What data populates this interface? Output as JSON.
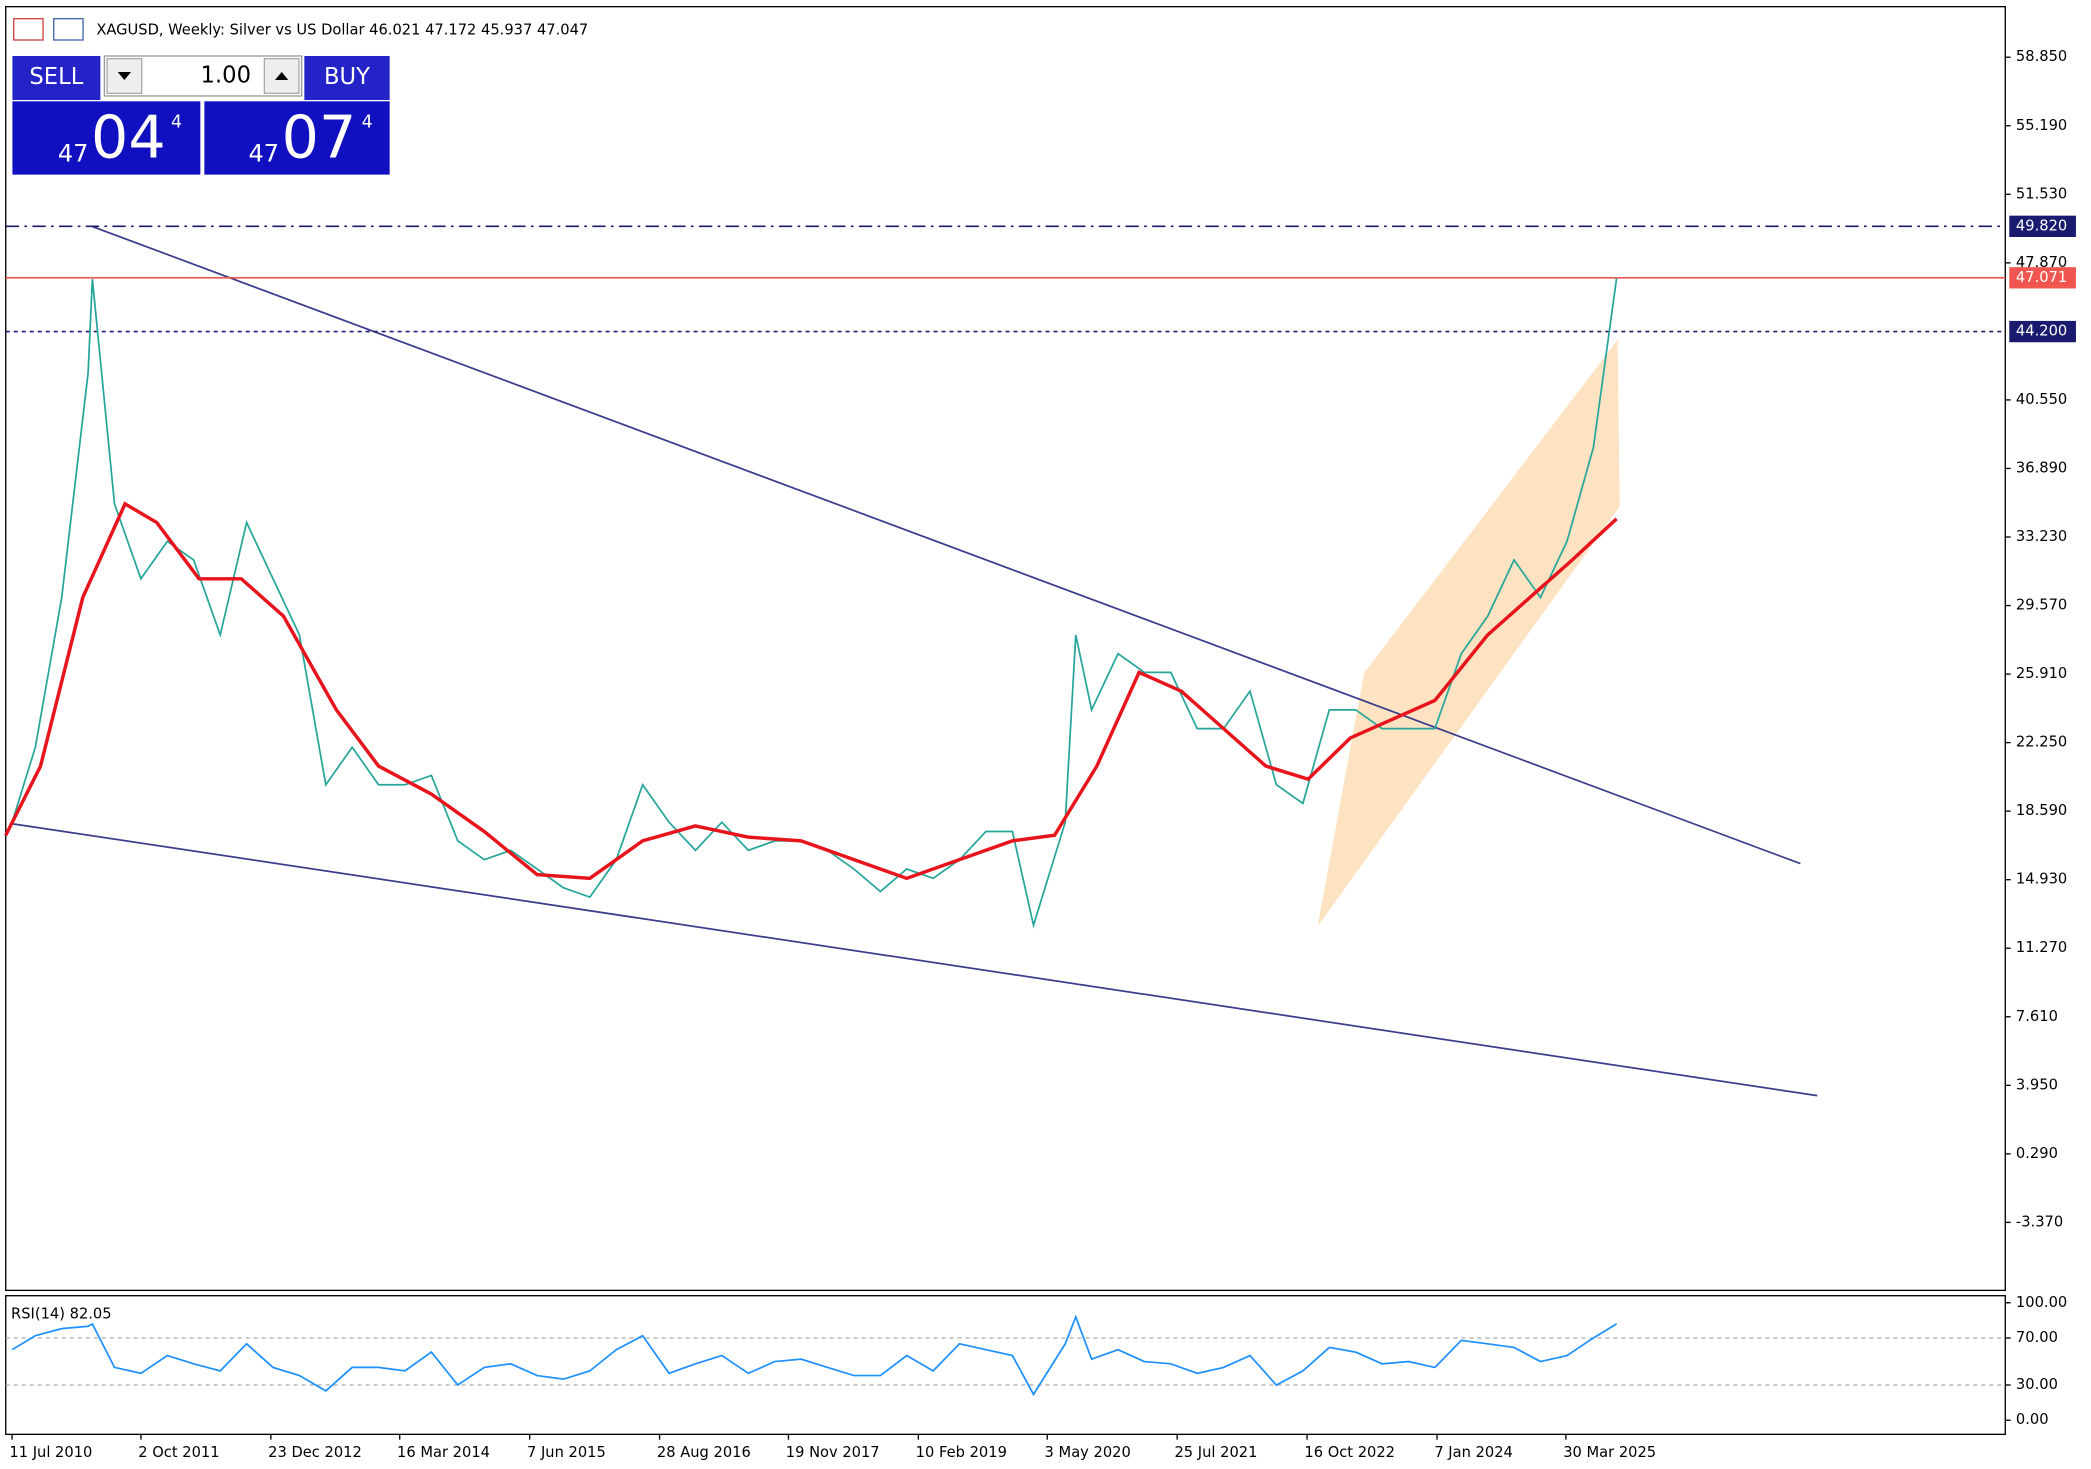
{
  "header": {
    "symbol_line": "XAGUSD, Weekly:  Silver vs US Dollar  46.021 47.172 45.937 47.047"
  },
  "trade_panel": {
    "sell": "SELL",
    "buy": "BUY",
    "volume": "1.00",
    "bid": {
      "big": "47",
      "main": "04",
      "small": "4"
    },
    "ask": {
      "big": "47",
      "main": "07",
      "small": "4"
    }
  },
  "chart_data": [
    {
      "type": "line",
      "xlim": [
        2010.47,
        2029.4
      ],
      "ylim": [
        -7.0,
        61.55
      ],
      "yticks": [
        {
          "value": 58.85,
          "label": "58.850"
        },
        {
          "value": 55.19,
          "label": "55.190"
        },
        {
          "value": 51.53,
          "label": "51.530"
        },
        {
          "value": 47.87,
          "label": "47.870"
        },
        {
          "value": 40.55,
          "label": "40.550"
        },
        {
          "value": 36.89,
          "label": "36.890"
        },
        {
          "value": 33.23,
          "label": "33.230"
        },
        {
          "value": 29.57,
          "label": "29.570"
        },
        {
          "value": 25.91,
          "label": "25.910"
        },
        {
          "value": 22.25,
          "label": "22.250"
        },
        {
          "value": 18.59,
          "label": "18.590"
        },
        {
          "value": 14.93,
          "label": "14.930"
        },
        {
          "value": 11.27,
          "label": "11.270"
        },
        {
          "value": 7.61,
          "label": "7.610"
        },
        {
          "value": 3.95,
          "label": "3.950"
        },
        {
          "value": 0.29,
          "label": "0.290"
        },
        {
          "value": -3.37,
          "label": "-3.370"
        }
      ],
      "x": [
        2010.53,
        2010.75,
        2011.0,
        2011.25,
        2011.29,
        2011.5,
        2011.75,
        2012.0,
        2012.25,
        2012.5,
        2012.75,
        2013.0,
        2013.25,
        2013.5,
        2013.75,
        2014.0,
        2014.25,
        2014.5,
        2014.75,
        2015.0,
        2015.25,
        2015.5,
        2015.75,
        2016.0,
        2016.25,
        2016.5,
        2016.75,
        2017.0,
        2017.25,
        2017.5,
        2017.75,
        2018.0,
        2018.25,
        2018.5,
        2018.75,
        2019.0,
        2019.25,
        2019.5,
        2019.75,
        2020.0,
        2020.2,
        2020.5,
        2020.6,
        2020.75,
        2021.0,
        2021.25,
        2021.5,
        2021.75,
        2022.0,
        2022.25,
        2022.5,
        2022.75,
        2023.0,
        2023.25,
        2023.5,
        2023.75,
        2024.0,
        2024.25,
        2024.5,
        2024.75,
        2025.0,
        2025.25,
        2025.5,
        2025.72
      ],
      "series": [
        {
          "color": "#26a69a",
          "values": [
            18,
            22,
            30,
            42,
            47,
            35,
            31,
            33,
            32,
            28,
            34,
            31,
            28,
            20,
            22,
            20,
            20,
            20.5,
            17,
            16,
            16.5,
            15.5,
            14.5,
            14,
            16,
            20,
            18,
            16.5,
            18,
            16.5,
            17,
            17,
            16.5,
            15.5,
            14.3,
            15.5,
            15,
            16,
            17.5,
            17.5,
            12.5,
            18,
            28,
            24,
            27,
            26,
            26,
            23,
            23,
            25,
            20,
            19,
            24,
            24,
            23,
            23,
            23,
            27,
            29,
            32,
            30,
            33,
            38,
            47.047
          ]
        }
      ],
      "ma": {
        "color": "#e8141c",
        "x": [
          2010.47,
          2010.8,
          2011.2,
          2011.6,
          2011.9,
          2012.3,
          2012.7,
          2013.1,
          2013.6,
          2014.0,
          2014.5,
          2015.0,
          2015.5,
          2016.0,
          2016.5,
          2017.0,
          2017.5,
          2018.0,
          2018.5,
          2019.0,
          2019.5,
          2020.0,
          2020.4,
          2020.8,
          2021.2,
          2021.6,
          2022.0,
          2022.4,
          2022.8,
          2023.2,
          2023.6,
          2024.0,
          2024.5,
          2024.9,
          2025.3,
          2025.72
        ],
        "values": [
          17.3,
          21,
          30,
          35,
          34,
          31,
          31,
          29,
          24,
          21,
          19.5,
          17.5,
          15.2,
          15,
          17,
          17.8,
          17.2,
          17,
          16,
          15,
          16,
          17,
          17.3,
          21,
          26,
          25,
          23,
          21,
          20.3,
          22.5,
          23.5,
          24.5,
          28,
          30,
          32,
          34.2
        ]
      },
      "hlines": [
        {
          "value": 49.82,
          "label": "49.820",
          "color": "#1a1a6e",
          "style": "dashdot"
        },
        {
          "value": 47.071,
          "label": "47.071",
          "color": "#f0564f",
          "style": "solid"
        },
        {
          "value": 44.2,
          "label": "44.200",
          "color": "#1a1a6e",
          "style": "dotted"
        }
      ],
      "trendlines": [
        {
          "color": "#3c3c8c",
          "x": [
            2011.29,
            2027.46
          ],
          "y": [
            49.81,
            15.79
          ]
        },
        {
          "color": "#3c3c8c",
          "x": [
            2010.53,
            2027.62
          ],
          "y": [
            17.92,
            3.4
          ]
        }
      ],
      "channel": {
        "color": "#fde3c1",
        "x": [
          2022.89,
          2023.33,
          2025.73,
          2025.75
        ],
        "y": [
          12.44,
          25.97,
          43.76,
          34.86
        ]
      }
    },
    {
      "type": "line",
      "title": "RSI(14) 82.05",
      "xlim": [
        2010.47,
        2029.4
      ],
      "ylim": [
        -12,
        106
      ],
      "yticks": [
        {
          "value": 100,
          "label": "100.00"
        },
        {
          "value": 70,
          "label": "70.00"
        },
        {
          "value": 30,
          "label": "30.00"
        },
        {
          "value": 0,
          "label": "0.00"
        }
      ],
      "levels": [
        30,
        70
      ],
      "xticks": [
        {
          "value": 2010.53,
          "label": "11 Jul 2010"
        },
        {
          "value": 2011.75,
          "label": "2 Oct 2011"
        },
        {
          "value": 2012.98,
          "label": "23 Dec 2012"
        },
        {
          "value": 2014.2,
          "label": "16 Mar 2014"
        },
        {
          "value": 2015.43,
          "label": "7 Jun 2015"
        },
        {
          "value": 2016.66,
          "label": "28 Aug 2016"
        },
        {
          "value": 2017.88,
          "label": "19 Nov 2017"
        },
        {
          "value": 2019.11,
          "label": "10 Feb 2019"
        },
        {
          "value": 2020.33,
          "label": "3 May 2020"
        },
        {
          "value": 2021.56,
          "label": "25 Jul 2021"
        },
        {
          "value": 2022.79,
          "label": "16 Oct 2022"
        },
        {
          "value": 2024.02,
          "label": "7 Jan 2024"
        },
        {
          "value": 2025.24,
          "label": "30 Mar 2025"
        }
      ],
      "x": [
        2010.53,
        2010.75,
        2011.0,
        2011.25,
        2011.29,
        2011.5,
        2011.75,
        2012.0,
        2012.25,
        2012.5,
        2012.75,
        2013.0,
        2013.25,
        2013.5,
        2013.75,
        2014.0,
        2014.25,
        2014.5,
        2014.75,
        2015.0,
        2015.25,
        2015.5,
        2015.75,
        2016.0,
        2016.25,
        2016.5,
        2016.75,
        2017.0,
        2017.25,
        2017.5,
        2017.75,
        2018.0,
        2018.25,
        2018.5,
        2018.75,
        2019.0,
        2019.25,
        2019.5,
        2019.75,
        2020.0,
        2020.2,
        2020.5,
        2020.6,
        2020.75,
        2021.0,
        2021.25,
        2021.5,
        2021.75,
        2022.0,
        2022.25,
        2022.5,
        2022.75,
        2023.0,
        2023.25,
        2023.5,
        2023.75,
        2024.0,
        2024.25,
        2024.5,
        2024.75,
        2025.0,
        2025.25,
        2025.5,
        2025.72
      ],
      "series": [
        {
          "color": "#1e90ff",
          "values": [
            60,
            72,
            78,
            80,
            82,
            45,
            40,
            55,
            48,
            42,
            65,
            45,
            38,
            25,
            45,
            45,
            42,
            58,
            30,
            45,
            48,
            38,
            35,
            42,
            60,
            72,
            40,
            48,
            55,
            40,
            50,
            52,
            45,
            38,
            38,
            55,
            42,
            65,
            60,
            55,
            22,
            65,
            88,
            52,
            60,
            50,
            48,
            40,
            45,
            55,
            30,
            42,
            62,
            58,
            48,
            50,
            45,
            68,
            65,
            62,
            50,
            55,
            70,
            82.05
          ]
        }
      ]
    }
  ]
}
